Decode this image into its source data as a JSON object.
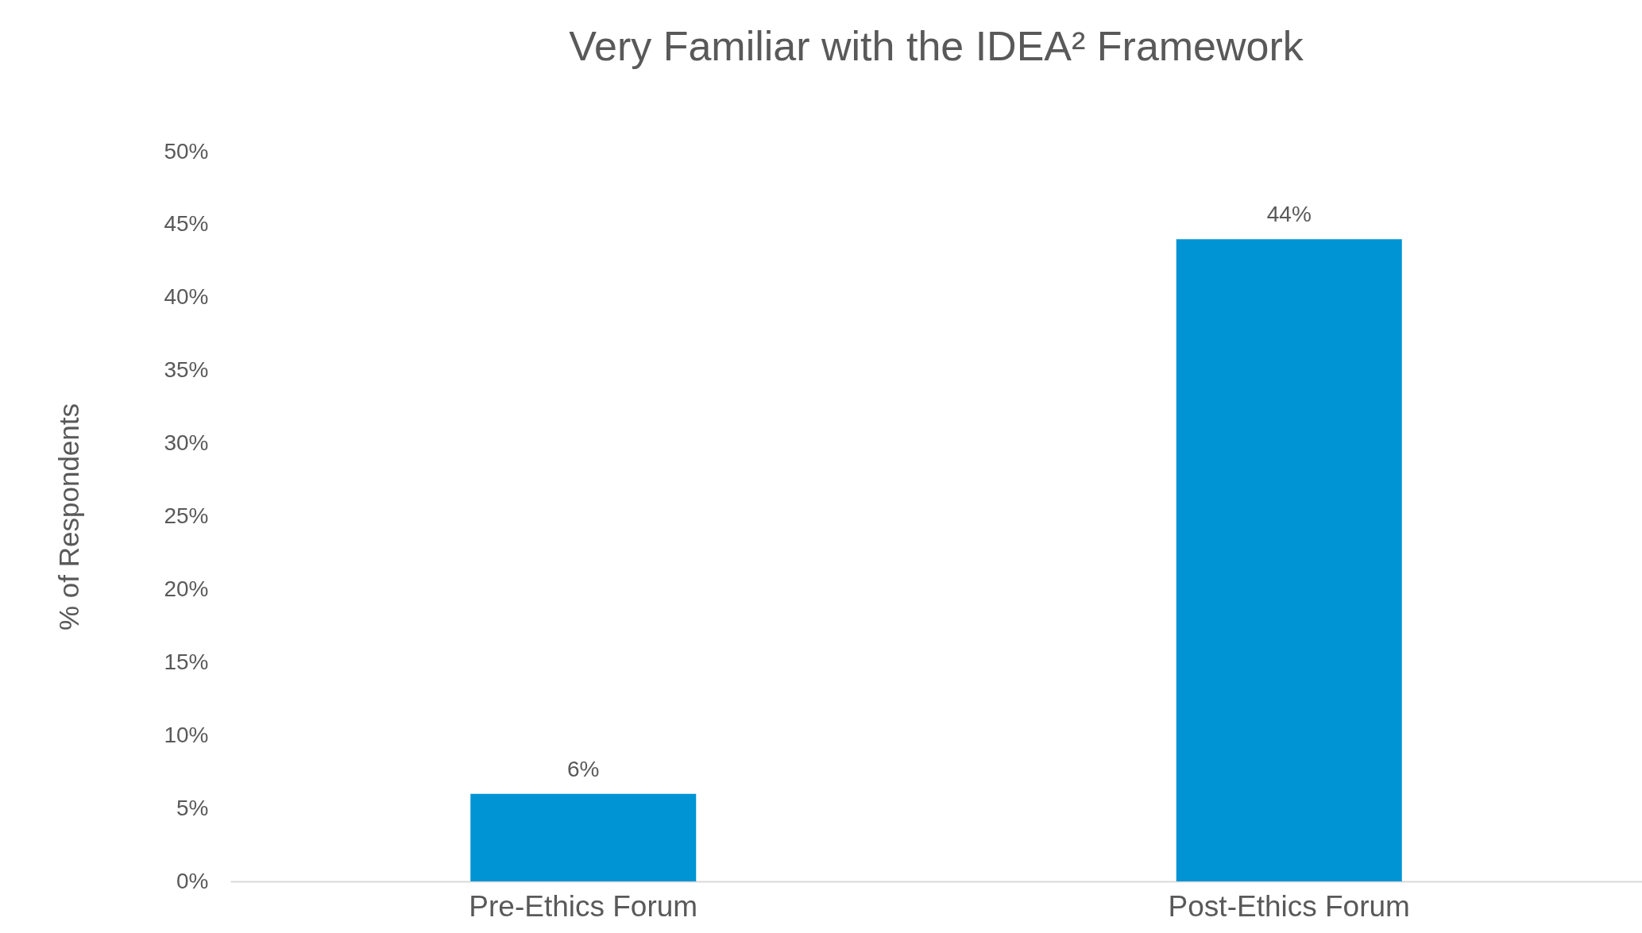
{
  "chart_data": {
    "type": "bar",
    "title": "Very Familiar with the IDEA² Framework",
    "ylabel": "% of Respondents",
    "categories": [
      "Pre-Ethics Forum",
      "Post-Ethics Forum"
    ],
    "values": [
      6,
      44
    ],
    "color": "#0094d4",
    "value_labels": [
      "6%",
      "44%"
    ],
    "ylim": [
      0,
      50
    ],
    "yticks": [
      {
        "value": 0,
        "label": "0%"
      },
      {
        "value": 5,
        "label": "5%"
      },
      {
        "value": 10,
        "label": "10%"
      },
      {
        "value": 15,
        "label": "15%"
      },
      {
        "value": 20,
        "label": "20%"
      },
      {
        "value": 25,
        "label": "25%"
      },
      {
        "value": 30,
        "label": "30%"
      },
      {
        "value": 35,
        "label": "35%"
      },
      {
        "value": 40,
        "label": "40%"
      },
      {
        "value": 45,
        "label": "45%"
      },
      {
        "value": 50,
        "label": "50%"
      }
    ],
    "grid": false
  }
}
